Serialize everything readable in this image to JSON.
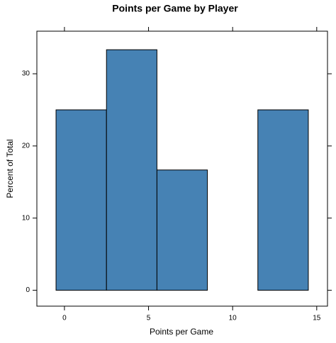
{
  "chart_data": {
    "type": "histogram",
    "title": "Points per Game by Player",
    "x_label": "Points per Game",
    "y_label": "Percent of Total",
    "bins": [
      -0.5,
      2.5,
      5.5,
      8.5,
      11.5,
      14.5
    ],
    "values": [
      25,
      33.33,
      16.67,
      0,
      25
    ],
    "color": "#4682b4",
    "xlim": [
      -1.64,
      15.64
    ],
    "xticks": [
      0,
      5,
      10,
      15
    ],
    "ylim": [
      -2.2,
      35.9
    ],
    "yticks": [
      0,
      10,
      20,
      30
    ]
  }
}
